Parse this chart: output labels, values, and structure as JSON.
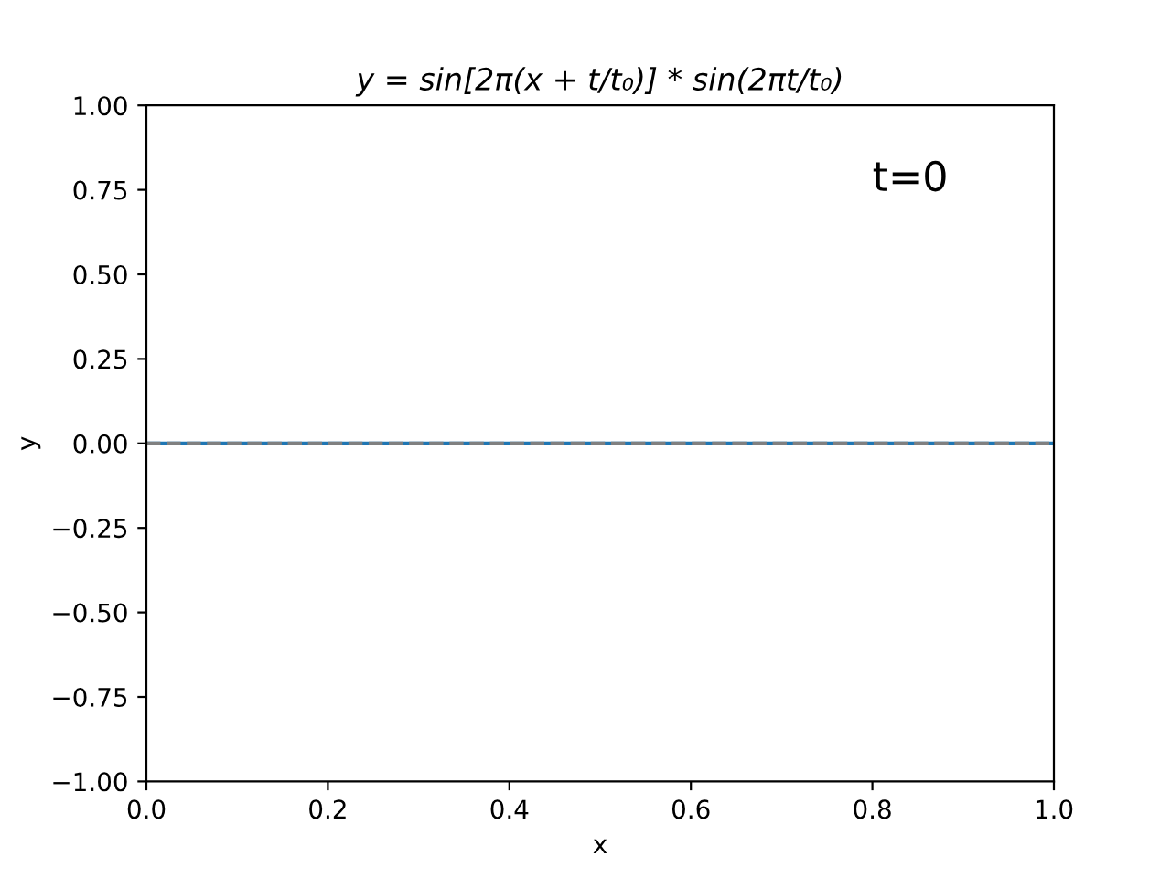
{
  "chart_data": {
    "type": "line",
    "title": "y = sin[2π(x + t/t₀)] * sin(2πt/t₀)",
    "xlabel": "x",
    "ylabel": "y",
    "x": [
      0,
      1.0
    ],
    "series": [
      {
        "color": "#1f77b4",
        "line_style": "solid",
        "values": [
          0,
          0
        ]
      },
      {
        "color": "#808080",
        "line_style": "dashed",
        "values": [
          0,
          0
        ]
      }
    ],
    "annotations": [
      "t=0"
    ],
    "xlim": [
      0,
      1
    ],
    "ylim": [
      -1,
      1
    ],
    "xticks": [
      {
        "value": 0,
        "label": "0.0"
      },
      {
        "value": 0.2,
        "label": "0.2"
      },
      {
        "value": 0.4,
        "label": "0.4"
      },
      {
        "value": 0.6,
        "label": "0.6"
      },
      {
        "value": 0.8,
        "label": "0.8"
      },
      {
        "value": 1,
        "label": "1.0"
      }
    ],
    "yticks": [
      {
        "value": -1,
        "label": "−1.00"
      },
      {
        "value": -0.75,
        "label": "−0.75"
      },
      {
        "value": -0.5,
        "label": "−0.50"
      },
      {
        "value": -0.25,
        "label": "−0.25"
      },
      {
        "value": 0,
        "label": "0.00"
      },
      {
        "value": 0.25,
        "label": "0.25"
      },
      {
        "value": 0.5,
        "label": "0.50"
      },
      {
        "value": 0.75,
        "label": "0.75"
      },
      {
        "value": 1,
        "label": "1.00"
      }
    ],
    "grid": false
  }
}
